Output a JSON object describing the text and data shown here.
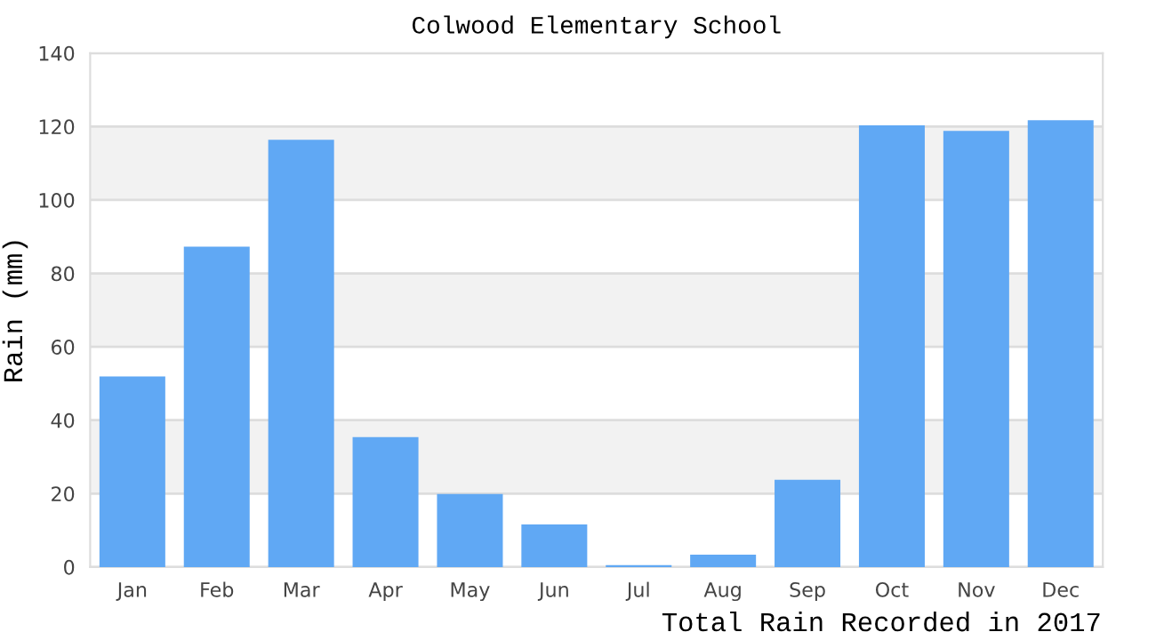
{
  "chart_data": {
    "type": "bar",
    "title": "Colwood Elementary School",
    "xlabel": "Total Rain Recorded in 2017",
    "ylabel": "Rain (mm)",
    "categories": [
      "Jan",
      "Feb",
      "Mar",
      "Apr",
      "May",
      "Jun",
      "Jul",
      "Aug",
      "Sep",
      "Oct",
      "Nov",
      "Dec"
    ],
    "values": [
      51.9,
      87.3,
      116.4,
      35.4,
      19.9,
      11.6,
      0.5,
      3.4,
      23.8,
      120.3,
      118.8,
      121.7
    ],
    "color": "#60a8f4",
    "ylim": [
      0,
      140
    ],
    "yticks": [
      0,
      20,
      40,
      60,
      80,
      100,
      120,
      140
    ],
    "grid": "y",
    "bands": [
      {
        "axis": "y",
        "from": 20,
        "to": 40,
        "color": "#f2f2f2"
      },
      {
        "axis": "y",
        "from": 60,
        "to": 80,
        "color": "#f2f2f2"
      },
      {
        "axis": "y",
        "from": 100,
        "to": 120,
        "color": "#f2f2f2"
      }
    ]
  }
}
